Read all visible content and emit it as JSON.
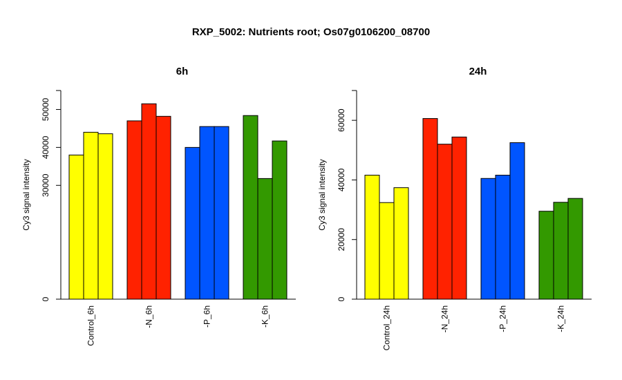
{
  "title": "RXP_5002: Nutrients root; Os07g0106200_08700",
  "chart_data": [
    {
      "type": "bar",
      "title": "6h",
      "ylabel": "Cy3 signal intensity",
      "ylim": [
        0,
        55000
      ],
      "y_ticks": [
        0,
        30000,
        40000,
        50000
      ],
      "y_tick_labels": [
        "0",
        "30000",
        "40000",
        "50000"
      ],
      "categories": [
        "Control_6h",
        "-N_6h",
        "-P_6h",
        "-K_6h"
      ],
      "colors": [
        "#ffff00",
        "#ff2200",
        "#0055ff",
        "#339900"
      ],
      "values": [
        [
          38000,
          44000,
          43600
        ],
        [
          47000,
          51500,
          48200
        ],
        [
          40000,
          45500,
          45500
        ],
        [
          48400,
          31800,
          41700
        ]
      ]
    },
    {
      "type": "bar",
      "title": "24h",
      "ylabel": "Cy3 signal intensity",
      "ylim": [
        0,
        70000
      ],
      "y_ticks": [
        0,
        20000,
        40000,
        60000
      ],
      "y_tick_labels": [
        "0",
        "20000",
        "40000",
        "60000"
      ],
      "categories": [
        "Control_24h",
        "-N_24h",
        "-P_24h",
        "-K_24h"
      ],
      "colors": [
        "#ffff00",
        "#ff2200",
        "#0055ff",
        "#339900"
      ],
      "values": [
        [
          41600,
          32400,
          37400
        ],
        [
          60600,
          52000,
          54400
        ],
        [
          40500,
          41600,
          52500
        ],
        [
          29500,
          32500,
          33800
        ]
      ]
    }
  ]
}
